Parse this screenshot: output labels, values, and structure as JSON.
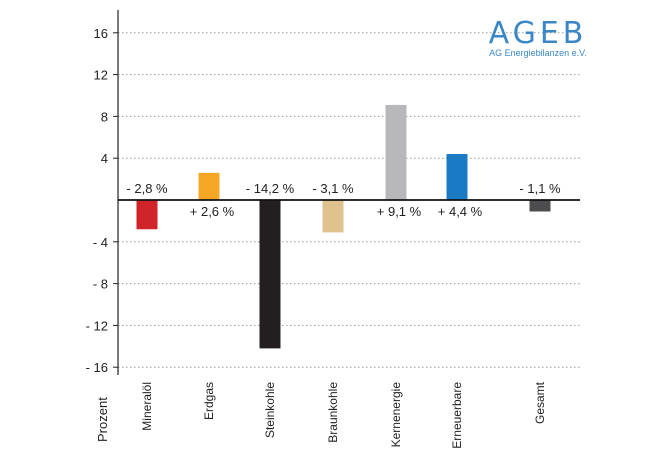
{
  "logo": {
    "name": "AGEB",
    "subtitle": "AG Energiebilanzen e.V.",
    "color": "#3a87c8"
  },
  "chart_data": {
    "type": "bar",
    "ylabel": "Prozent",
    "ylim": [
      -18,
      18
    ],
    "yticks": [
      16,
      12,
      8,
      4,
      -4,
      -8,
      -12,
      -16
    ],
    "ytick_labels": [
      "16",
      "12",
      "8",
      "4",
      "- 4",
      "- 8",
      "- 12",
      "- 16"
    ],
    "grid": "horizontal dotted",
    "categories": [
      "Mineralöl",
      "Erdgas",
      "Steinkohle",
      "Braunkohle",
      "Kernenergie",
      "Erneuerbare",
      "Gesamt"
    ],
    "values": [
      -2.8,
      2.6,
      -14.2,
      -3.1,
      9.1,
      4.4,
      -1.1
    ],
    "data_labels": [
      "- 2,8 %",
      "+ 2,6 %",
      "- 14,2 %",
      "- 3,1 %",
      "+ 9,1 %",
      "+ 4,4 %",
      "- 1,1 %"
    ],
    "colors": [
      "#d0232a",
      "#f5a623",
      "#231f20",
      "#e0c28f",
      "#b8b8bc",
      "#1a7bc4",
      "#4d4d4f"
    ]
  }
}
